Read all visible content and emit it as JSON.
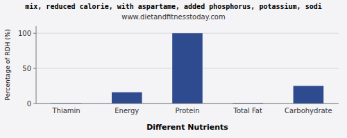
{
  "chart_data": {
    "type": "bar",
    "title": "mix, reduced calorie, with aspartame, added phosphorus, potassium, sodi",
    "subtitle": "www.dietandfitnesstoday.com",
    "xlabel": "Different Nutrients",
    "ylabel": "Percentage of RDH (%)",
    "categories": [
      "Thiamin",
      "Energy",
      "Protein",
      "Total Fat",
      "Carbohydrate"
    ],
    "values": [
      0.5,
      16,
      100,
      0.8,
      25
    ],
    "color": "#2d4b8e",
    "ylim": [
      0,
      110
    ],
    "yticks": [
      0,
      50,
      100
    ],
    "grid": true
  }
}
